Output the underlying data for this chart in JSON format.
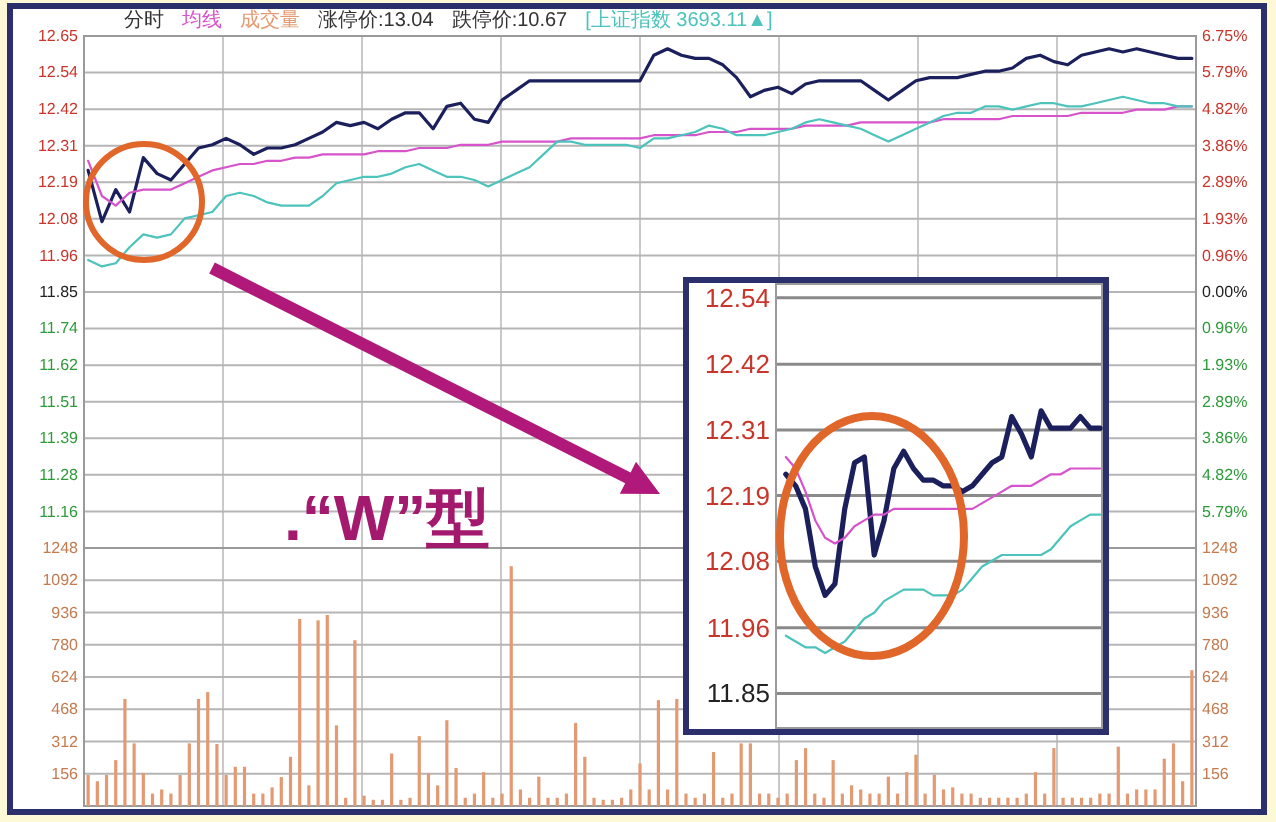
{
  "chart_data": [
    {
      "type": "line",
      "title": "分时",
      "annotations": [
        "涨停价:13.04",
        "跌停价:10.67",
        ".“W”型"
      ],
      "categories": [
        null,
        null,
        null,
        null,
        null,
        null,
        null,
        null,
        null,
        null,
        null,
        null,
        null,
        null,
        null,
        null,
        null,
        null,
        null,
        null,
        null,
        null,
        null,
        null,
        null,
        null,
        null,
        null,
        null,
        null,
        null,
        null,
        null,
        null,
        null,
        null,
        null,
        null,
        null,
        null,
        null,
        null,
        null,
        null,
        null,
        null,
        null,
        null,
        null,
        null,
        null,
        null,
        null,
        null,
        null,
        null,
        null,
        null,
        null,
        null,
        null,
        null,
        null,
        null,
        null,
        null,
        null,
        null,
        null,
        null,
        null,
        null,
        null,
        null,
        null,
        null,
        null,
        null,
        null,
        null,
        null
      ],
      "ylim": [
        11.05,
        12.65
      ],
      "yticks": [
        12.65,
        {
          "value": 12.536,
          "label": "12.54"
        },
        {
          "value": 12.421,
          "label": "12.42"
        },
        {
          "value": 12.307,
          "label": "12.31"
        },
        {
          "value": 12.193,
          "label": "12.19"
        },
        {
          "value": 12.079,
          "label": "12.08"
        },
        {
          "value": 11.964,
          "label": "11.96"
        },
        11.85,
        {
          "value": 11.736,
          "label": "11.74"
        },
        {
          "value": 11.621,
          "label": "11.62"
        },
        {
          "value": 11.507,
          "label": "11.51"
        },
        {
          "value": 11.393,
          "label": "11.39"
        },
        {
          "value": 11.279,
          "label": "11.28"
        },
        {
          "value": 11.164,
          "label": "11.16"
        }
      ],
      "y2lim": [
        -6.75,
        6.75
      ],
      "y2ticks": [
        {
          "value": 6.75,
          "label": "6.75%"
        },
        {
          "value": 5.79,
          "label": "5.79%"
        },
        {
          "value": 4.82,
          "label": "4.82%"
        },
        {
          "value": 3.86,
          "label": "3.86%"
        },
        {
          "value": 2.89,
          "label": "2.89%"
        },
        {
          "value": 1.93,
          "label": "1.93%"
        },
        {
          "value": 0.96,
          "label": "0.96%"
        },
        {
          "value": 0,
          "label": "0.00%"
        },
        {
          "value": -0.96,
          "label": "0.96%"
        },
        {
          "value": -1.93,
          "label": "1.93%"
        },
        {
          "value": -2.89,
          "label": "2.89%"
        },
        {
          "value": -3.86,
          "label": "3.86%"
        },
        {
          "value": -4.82,
          "label": "4.82%"
        },
        {
          "value": -5.79,
          "label": "5.79%"
        }
      ],
      "grid": true,
      "series": [
        {
          "color": "#1b1f5c",
          "values": [
            12.23,
            12.07,
            12.17,
            12.1,
            12.27,
            12.22,
            12.2,
            12.25,
            12.3,
            12.31,
            12.33,
            12.31,
            12.28,
            12.3,
            12.3,
            12.31,
            12.33,
            12.35,
            12.38,
            12.37,
            12.38,
            12.36,
            12.39,
            12.41,
            12.41,
            12.36,
            12.43,
            12.44,
            12.39,
            12.38,
            12.45,
            12.48,
            12.51,
            12.51,
            12.51,
            12.51,
            12.51,
            12.51,
            12.51,
            12.51,
            12.51,
            12.59,
            12.61,
            12.59,
            12.58,
            12.58,
            12.56,
            12.52,
            12.46,
            12.48,
            12.49,
            12.47,
            12.5,
            12.51,
            12.51,
            12.51,
            12.51,
            12.48,
            12.45,
            12.48,
            12.51,
            12.52,
            12.52,
            12.52,
            12.53,
            12.54,
            12.54,
            12.55,
            12.58,
            12.59,
            12.57,
            12.56,
            12.59,
            12.6,
            12.61,
            12.6,
            12.61,
            12.6,
            12.59,
            12.58,
            12.58
          ]
        },
        {
          "name": "均线",
          "color": "#d653cc",
          "values": [
            12.26,
            12.15,
            12.12,
            12.16,
            12.17,
            12.17,
            12.17,
            12.19,
            12.21,
            12.23,
            12.24,
            12.25,
            12.25,
            12.26,
            12.26,
            12.27,
            12.27,
            12.28,
            12.28,
            12.28,
            12.28,
            12.29,
            12.29,
            12.29,
            12.3,
            12.3,
            12.3,
            12.31,
            12.31,
            12.31,
            12.32,
            12.32,
            12.32,
            12.32,
            12.32,
            12.33,
            12.33,
            12.33,
            12.33,
            12.33,
            12.33,
            12.34,
            12.34,
            12.34,
            12.34,
            12.35,
            12.35,
            12.35,
            12.36,
            12.36,
            12.36,
            12.36,
            12.37,
            12.37,
            12.37,
            12.37,
            12.38,
            12.38,
            12.38,
            12.38,
            12.38,
            12.38,
            12.39,
            12.39,
            12.39,
            12.39,
            12.39,
            12.4,
            12.4,
            12.4,
            12.4,
            12.4,
            12.41,
            12.41,
            12.41,
            12.41,
            12.42,
            12.42,
            12.42,
            12.43,
            12.43
          ]
        },
        {
          "name": "[上证指数 3693.11▲]",
          "color": "#4cc3bb",
          "values": [
            11.95,
            11.93,
            11.94,
            11.99,
            12.03,
            12.02,
            12.03,
            12.08,
            12.09,
            12.1,
            12.15,
            12.16,
            12.15,
            12.13,
            12.12,
            12.12,
            12.12,
            12.15,
            12.19,
            12.2,
            12.21,
            12.21,
            12.22,
            12.24,
            12.25,
            12.23,
            12.21,
            12.21,
            12.2,
            12.18,
            12.2,
            12.22,
            12.24,
            12.28,
            12.32,
            12.32,
            12.31,
            12.31,
            12.31,
            12.31,
            12.3,
            12.33,
            12.33,
            12.34,
            12.35,
            12.37,
            12.36,
            12.34,
            12.34,
            12.34,
            12.35,
            12.36,
            12.38,
            12.39,
            12.38,
            12.37,
            12.36,
            12.34,
            12.32,
            12.34,
            12.36,
            12.38,
            12.4,
            12.41,
            12.41,
            12.43,
            12.43,
            12.42,
            12.43,
            12.44,
            12.44,
            12.43,
            12.43,
            12.44,
            12.45,
            12.46,
            12.45,
            12.44,
            12.44,
            12.43,
            12.43
          ]
        }
      ]
    },
    {
      "type": "bar",
      "categories": [
        null,
        null,
        null,
        null,
        null,
        null,
        null,
        null,
        null,
        null,
        null,
        null,
        null,
        null,
        null,
        null,
        null,
        null,
        null,
        null,
        null,
        null,
        null,
        null,
        null,
        null,
        null,
        null,
        null,
        null,
        null,
        null,
        null,
        null,
        null,
        null,
        null,
        null,
        null,
        null,
        null,
        null,
        null,
        null,
        null,
        null,
        null,
        null,
        null,
        null,
        null,
        null,
        null,
        null,
        null,
        null,
        null,
        null,
        null,
        null,
        null,
        null,
        null,
        null,
        null,
        null,
        null,
        null,
        null,
        null,
        null,
        null,
        null,
        null,
        null,
        null,
        null,
        null,
        null,
        null,
        null,
        null,
        null,
        null,
        null,
        null,
        null,
        null,
        null,
        null,
        null,
        null,
        null,
        null,
        null,
        null,
        null,
        null,
        null,
        null,
        null,
        null,
        null,
        null,
        null,
        null,
        null,
        null,
        null,
        null,
        null,
        null,
        null,
        null,
        null,
        null,
        null,
        null,
        null,
        null,
        null
      ],
      "ylim": [
        0,
        1248
      ],
      "yticks": [
        156,
        312,
        468,
        624,
        780,
        936,
        1092,
        1248
      ],
      "y2lim": [
        0,
        1248
      ],
      "y2ticks": [
        156,
        312,
        468,
        624,
        780,
        936,
        1092,
        1248
      ],
      "grid": true,
      "series": [
        {
          "name": "成交量",
          "color": "#e39a72",
          "values": [
            150,
            120,
            150,
            222,
            518,
            303,
            160,
            60,
            80,
            60,
            150,
            303,
            518,
            551,
            300,
            150,
            190,
            190,
            60,
            60,
            90,
            140,
            238,
            905,
            100,
            898,
            924,
            390,
            40,
            802,
            50,
            30,
            30,
            254,
            30,
            40,
            338,
            158,
            100,
            415,
            184,
            40,
            60,
            164,
            40,
            60,
            1160,
            80,
            40,
            142,
            40,
            40,
            60,
            402,
            238,
            40,
            30,
            30,
            40,
            80,
            206,
            80,
            512,
            80,
            518,
            60,
            40,
            60,
            261,
            40,
            60,
            303,
            303,
            60,
            60,
            40,
            60,
            222,
            280,
            60,
            40,
            222,
            60,
            100,
            80,
            60,
            60,
            142,
            60,
            164,
            248,
            60,
            151,
            80,
            90,
            60,
            60,
            40,
            40,
            40,
            40,
            40,
            60,
            164,
            60,
            280,
            40,
            40,
            40,
            40,
            60,
            60,
            287,
            60,
            80,
            80,
            80,
            229,
            303,
            120,
            657
          ]
        }
      ]
    },
    {
      "type": "line",
      "categories": [
        null,
        null,
        null,
        null,
        null,
        null,
        null,
        null,
        null,
        null,
        null,
        null,
        null,
        null,
        null,
        null,
        null,
        null,
        null,
        null,
        null,
        null,
        null,
        null,
        null,
        null,
        null,
        null,
        null,
        null,
        null,
        null,
        null
      ],
      "ylim": [
        11.79,
        12.56
      ],
      "yticks": [
        {
          "value": 12.536,
          "label": "12.54"
        },
        {
          "value": 12.421,
          "label": "12.42"
        },
        {
          "value": 12.307,
          "label": "12.31"
        },
        {
          "value": 12.193,
          "label": "12.19"
        },
        {
          "value": 12.079,
          "label": "12.08"
        },
        {
          "value": 11.964,
          "label": "11.96"
        },
        11.85
      ],
      "grid": "y",
      "series": [
        {
          "color": "#1b1f5c",
          "values": [
            12.23,
            12.21,
            12.17,
            12.07,
            12.02,
            12.04,
            12.17,
            12.25,
            12.26,
            12.09,
            12.15,
            12.24,
            12.27,
            12.24,
            12.22,
            12.22,
            12.21,
            12.21,
            12.2,
            12.21,
            12.23,
            12.25,
            12.26,
            12.33,
            12.3,
            12.26,
            12.34,
            12.31,
            12.31,
            12.31,
            12.33,
            12.31,
            12.31
          ]
        },
        {
          "color": "#d653cc",
          "values": [
            12.26,
            12.24,
            12.2,
            12.15,
            12.12,
            12.11,
            12.12,
            12.14,
            12.15,
            12.16,
            12.16,
            12.17,
            12.17,
            12.17,
            12.17,
            12.17,
            12.17,
            12.17,
            12.17,
            12.17,
            12.18,
            12.19,
            12.2,
            12.21,
            12.21,
            12.21,
            12.22,
            12.23,
            12.23,
            12.24,
            12.24,
            12.24,
            12.24
          ]
        },
        {
          "color": "#4cc3bb",
          "values": [
            11.95,
            11.94,
            11.93,
            11.93,
            11.92,
            11.93,
            11.94,
            11.96,
            11.98,
            11.99,
            12.01,
            12.02,
            12.03,
            12.03,
            12.03,
            12.02,
            12.02,
            12.02,
            12.03,
            12.05,
            12.07,
            12.08,
            12.09,
            12.09,
            12.09,
            12.09,
            12.09,
            12.1,
            12.12,
            12.14,
            12.15,
            12.16,
            12.16
          ]
        }
      ]
    }
  ]
}
